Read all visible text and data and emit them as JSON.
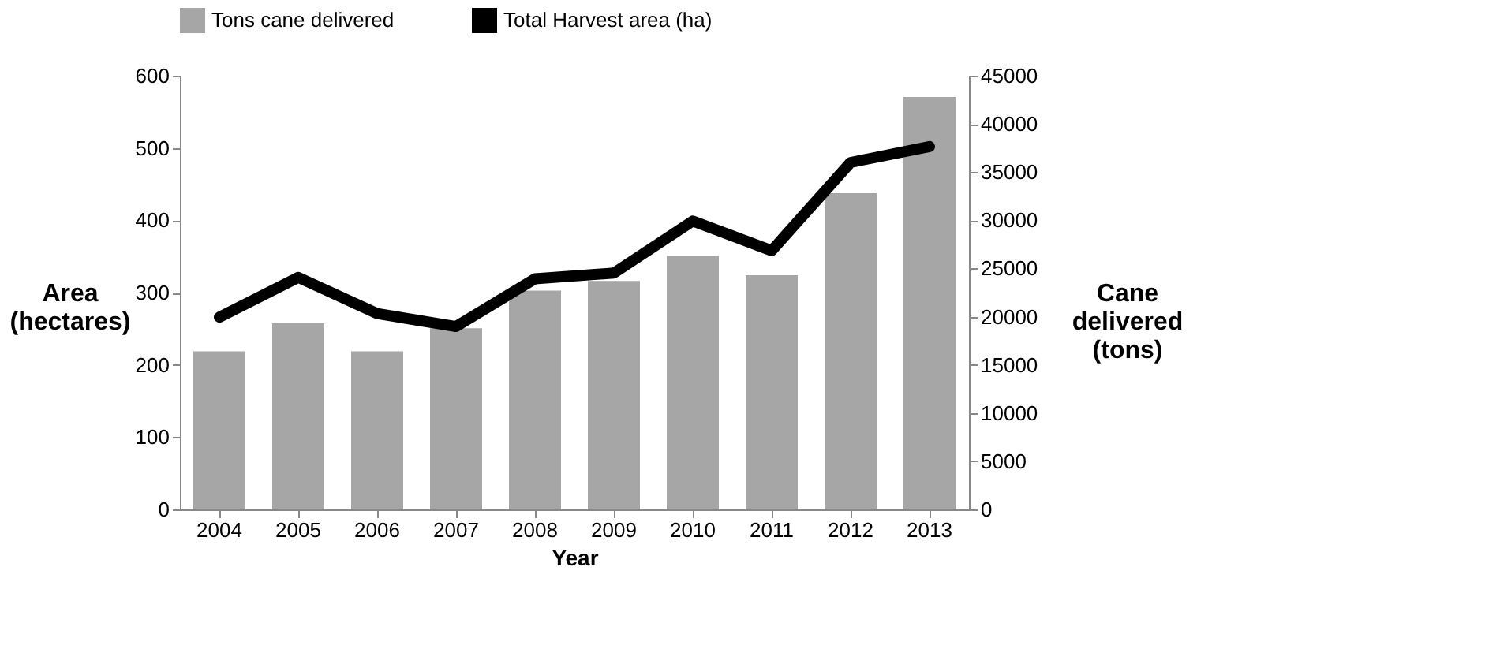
{
  "chart_data": {
    "type": "bar",
    "categories": [
      "2004",
      "2005",
      "2006",
      "2007",
      "2008",
      "2009",
      "2010",
      "2011",
      "2012",
      "2013"
    ],
    "xlabel": "Year",
    "ylabel": "Area (hectares)",
    "y2label": "Cane delivered (tons)",
    "series": [
      {
        "name": "Tons cane delivered",
        "axis": "y2",
        "color": "#a6a6a6",
        "values": [
          16400,
          19300,
          16400,
          18800,
          22700,
          23700,
          26300,
          24300,
          32800,
          42800
        ]
      },
      {
        "name": "Total Harvest area (ha)",
        "type": "line",
        "axis": "y",
        "color": "#000000",
        "values": [
          266,
          321,
          271,
          253,
          319,
          327,
          399,
          358,
          480,
          502
        ]
      }
    ],
    "ylim": [
      0,
      600
    ],
    "yticks": [
      0,
      100,
      200,
      300,
      400,
      500,
      600
    ],
    "y2lim": [
      0,
      45000
    ],
    "y2ticks": [
      0,
      5000,
      10000,
      15000,
      20000,
      25000,
      30000,
      35000,
      40000,
      45000
    ],
    "grid": false,
    "legend": "top"
  }
}
